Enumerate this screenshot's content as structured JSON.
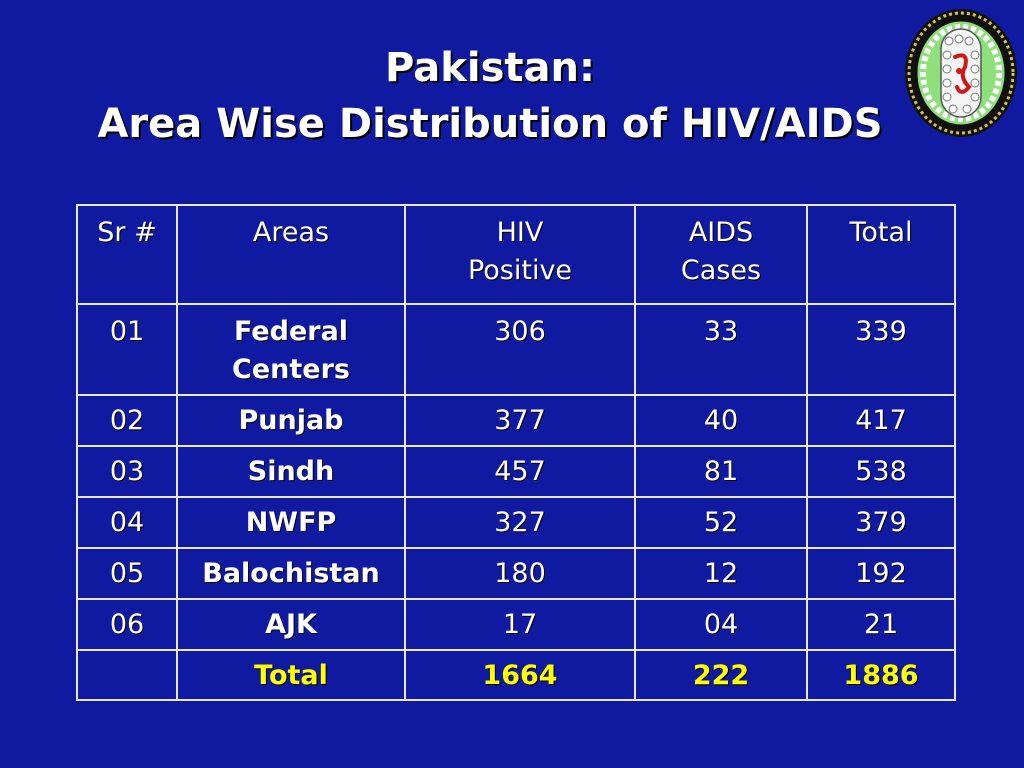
{
  "slide": {
    "title_line1": "Pakistan:",
    "title_line2": "Area Wise Distribution of HIV/AIDS"
  },
  "table": {
    "headers": {
      "sr": "Sr #",
      "areas": "Areas",
      "hiv_line1": "HIV",
      "hiv_line2": "Positive",
      "aids_line1": "AIDS",
      "aids_line2": "Cases",
      "total": "Total"
    },
    "rows": [
      {
        "sr": "01",
        "area_line1": "Federal",
        "area_line2": "Centers",
        "hiv": "306",
        "aids": "33",
        "total": "339"
      },
      {
        "sr": "02",
        "area": "Punjab",
        "hiv": "377",
        "aids": "40",
        "total": "417"
      },
      {
        "sr": "03",
        "area": "Sindh",
        "hiv": "457",
        "aids": "81",
        "total": "538"
      },
      {
        "sr": "04",
        "area": "NWFP",
        "hiv": "327",
        "aids": "52",
        "total": "379"
      },
      {
        "sr": "05",
        "area": "Balochistan",
        "hiv": "180",
        "aids": "12",
        "total": "192"
      },
      {
        "sr": "06",
        "area": "AJK",
        "hiv": "17",
        "aids": "04",
        "total": "21"
      }
    ],
    "total_row": {
      "sr": "",
      "label": "Total",
      "hiv": "1664",
      "aids": "222",
      "total": "1886"
    }
  },
  "colors": {
    "background": "#0f1aa0",
    "text": "#ffffff",
    "total_highlight": "#ffff00",
    "grid": "#e8e8e8",
    "logo_green": "#8de07a"
  },
  "icons": {
    "logo": "hiv-virus-emblem-icon"
  }
}
